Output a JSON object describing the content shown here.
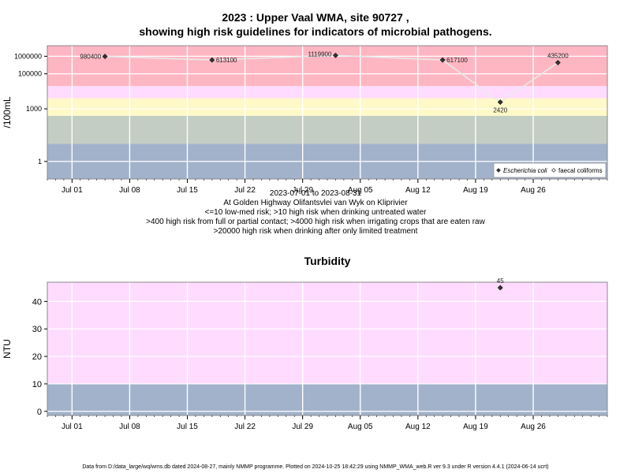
{
  "page": {
    "title_line1": "2023 : Upper Vaal WMA, site 90727 ,",
    "title_line2": "showing high risk guidelines for indicators of microbial pathogens.",
    "date_range": "2023-07-01 to 2023-08-31",
    "location": "At Golden Highway Olifantsvlei van Wyk on Kliprivier",
    "note1": "<=10 low-med risk; >10 high risk when drinking untreated water",
    "note2": ">400 high risk from full or partial contact; >4000 high risk when irrigating crops that are eaten raw",
    "note3": ">20000 high risk when drinking after only limited treatment",
    "footer": "Data from D:/data_large/wq/wms.db dated 2024-08-27, mainly NMMP programme. Plotted on 2024-10-25 18:42:29 using NMMP_WMA_web.R ver 9.3 under R version 4.4.1 (2024-06-14 ucrt)"
  },
  "chart_data": [
    {
      "type": "line",
      "title": "",
      "xlabel": "",
      "ylabel": "/100mL",
      "y_scale": "log",
      "ylim": [
        0.1,
        4000000
      ],
      "xlim": [
        "2023-06-28",
        "2023-09-04"
      ],
      "x_ticks": [
        "Jul 01",
        "Jul 08",
        "Jul 15",
        "Jul 22",
        "Jul 29",
        "Aug 05",
        "Aug 12",
        "Aug 19",
        "Aug 26"
      ],
      "x_tick_dates": [
        "2023-07-01",
        "2023-07-08",
        "2023-07-15",
        "2023-07-22",
        "2023-07-29",
        "2023-08-05",
        "2023-08-12",
        "2023-08-19",
        "2023-08-26"
      ],
      "y_ticks": [
        1,
        1000,
        100000,
        1000000
      ],
      "y_tick_labels": [
        "1",
        "1000",
        "100000",
        "1000000"
      ],
      "bands": [
        {
          "from": 0.1,
          "to": 10,
          "color": "#a2b2cb"
        },
        {
          "from": 10,
          "to": 400,
          "color": "#c3cdc3"
        },
        {
          "from": 400,
          "to": 4000,
          "color": "#fff9c8"
        },
        {
          "from": 4000,
          "to": 20000,
          "color": "#ffdcff"
        },
        {
          "from": 20000,
          "to": 4000000,
          "color": "#ffb6c3"
        }
      ],
      "series": [
        {
          "name": "Escherichia coli",
          "color": "#333333",
          "marker": "diamond-filled",
          "x": [
            "2023-07-05",
            "2023-07-18",
            "2023-08-02",
            "2023-08-15",
            "2023-08-22",
            "2023-08-29"
          ],
          "y": [
            980400,
            613100,
            1119900,
            617100,
            2420,
            435200
          ],
          "labels": [
            "980400",
            "613100",
            "1119900",
            "617100",
            "2420",
            "435200"
          ]
        },
        {
          "name": "faecal coliforms",
          "color": "#555555",
          "marker": "diamond-open",
          "x": [],
          "y": []
        }
      ],
      "legend_position": "bottom-right",
      "grid": true
    },
    {
      "type": "scatter",
      "title": "Turbidity",
      "xlabel": "",
      "ylabel": "NTU",
      "ylim": [
        -1.5,
        47
      ],
      "xlim": [
        "2023-06-28",
        "2023-09-04"
      ],
      "x_ticks": [
        "Jul 01",
        "Jul 08",
        "Jul 15",
        "Jul 22",
        "Jul 29",
        "Aug 05",
        "Aug 12",
        "Aug 19",
        "Aug 26"
      ],
      "x_tick_dates": [
        "2023-07-01",
        "2023-07-08",
        "2023-07-15",
        "2023-07-22",
        "2023-07-29",
        "2023-08-05",
        "2023-08-12",
        "2023-08-19",
        "2023-08-26"
      ],
      "y_ticks": [
        0,
        10,
        20,
        30,
        40
      ],
      "bands": [
        {
          "from": -1.5,
          "to": 10,
          "color": "#a2b2cb"
        },
        {
          "from": 10,
          "to": 47,
          "color": "#ffdcff"
        }
      ],
      "series": [
        {
          "name": "Turbidity",
          "color": "#333333",
          "marker": "diamond-filled",
          "x": [
            "2023-08-22"
          ],
          "y": [
            45
          ],
          "labels": [
            "45"
          ]
        }
      ],
      "grid": true
    }
  ]
}
